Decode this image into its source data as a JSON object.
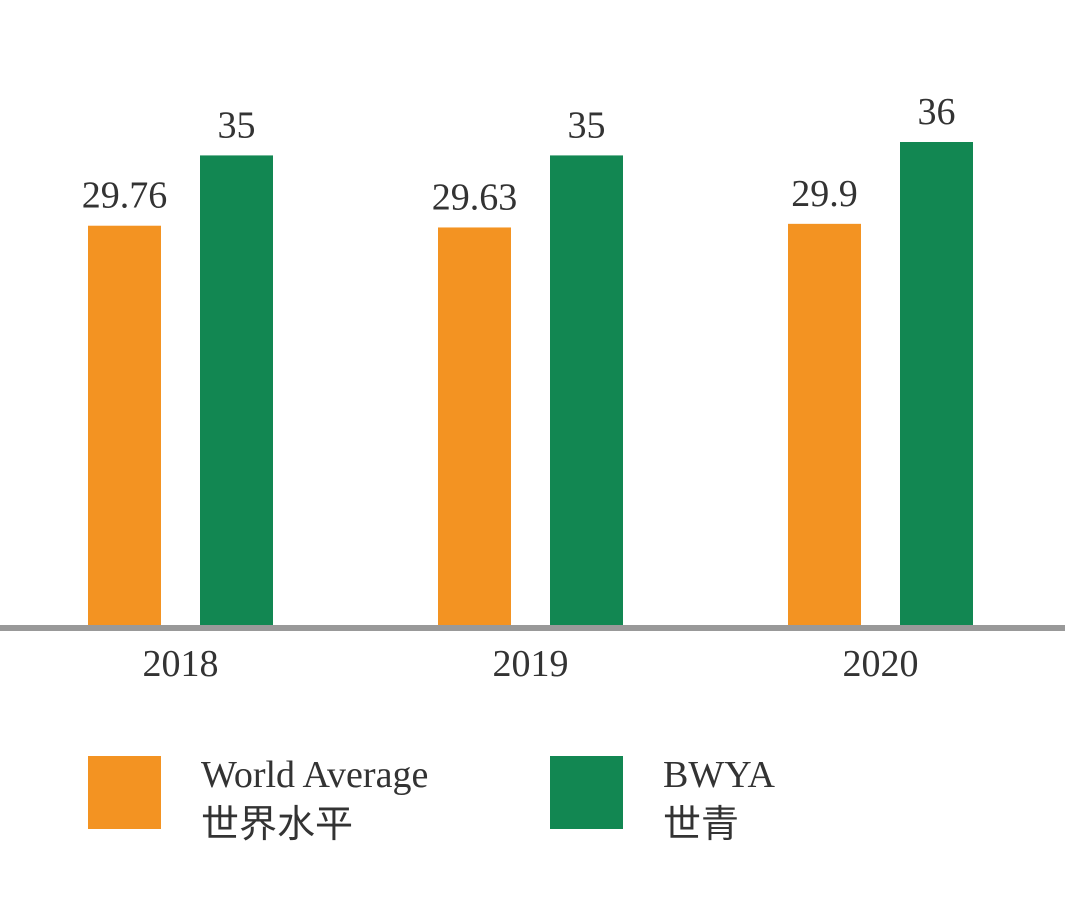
{
  "chart_data": {
    "type": "bar",
    "title": "",
    "xlabel": "",
    "ylabel": "",
    "categories": [
      "2018",
      "2019",
      "2020"
    ],
    "series": [
      {
        "name": "World Average",
        "name_zh": "世界水平",
        "color": "#F39322",
        "values": [
          29.76,
          29.63,
          29.9
        ],
        "labels": [
          "29.76",
          "29.63",
          "29.9"
        ]
      },
      {
        "name": "BWYA",
        "name_zh": "世青",
        "color": "#128752",
        "values": [
          35,
          35,
          36
        ],
        "labels": [
          "35",
          "35",
          "36"
        ]
      }
    ],
    "ylim": [
      0,
      36
    ],
    "grid": false,
    "legend_position": "bottom",
    "axis_color": "#999999"
  }
}
